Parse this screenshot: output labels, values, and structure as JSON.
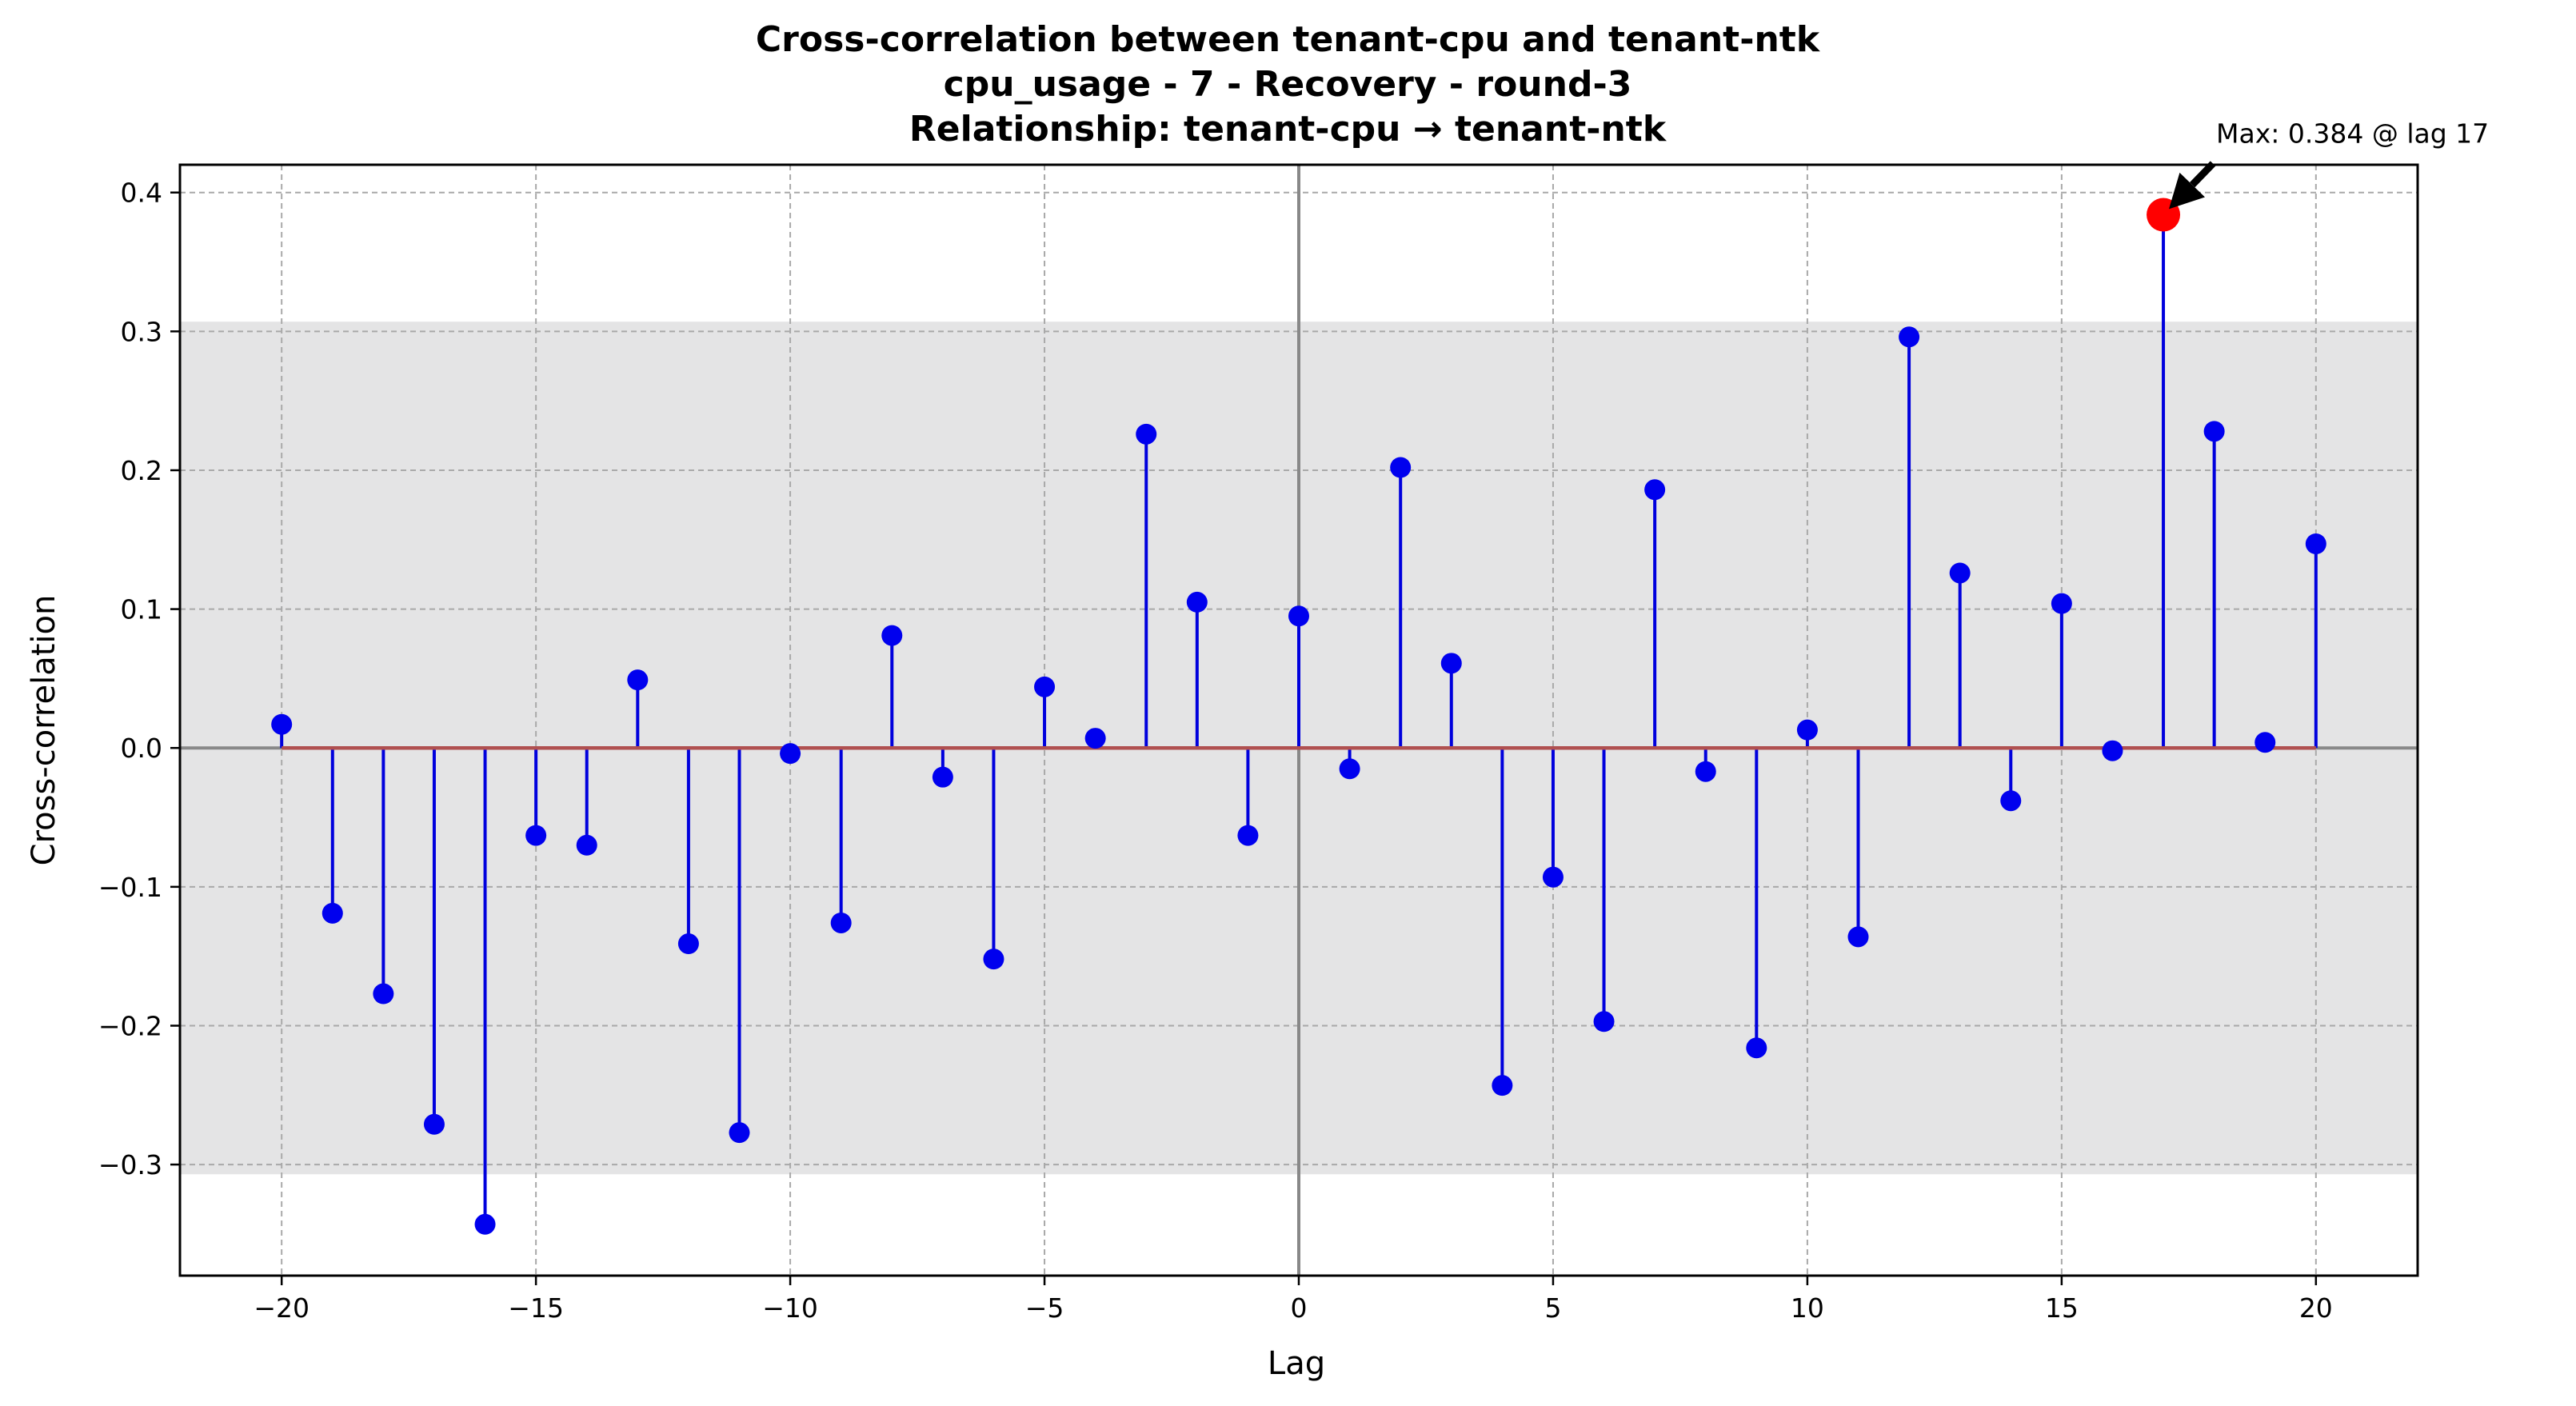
{
  "chart_data": {
    "type": "stem",
    "title_lines": [
      "Cross-correlation between tenant-cpu and tenant-ntk",
      "cpu_usage - 7 - Recovery - round-3",
      "Relationship: tenant-cpu → tenant-ntk"
    ],
    "xlabel": "Lag",
    "ylabel": "Cross-correlation",
    "xlim": [
      -22,
      22
    ],
    "ylim": [
      -0.38,
      0.42
    ],
    "xticks": [
      -20,
      -15,
      -10,
      -5,
      0,
      5,
      10,
      15,
      20
    ],
    "xtick_labels": [
      "−20",
      "−15",
      "−10",
      "−5",
      "0",
      "5",
      "10",
      "15",
      "20"
    ],
    "yticks": [
      -0.3,
      -0.2,
      -0.1,
      0.0,
      0.1,
      0.2,
      0.3,
      0.4
    ],
    "ytick_labels": [
      "−0.3",
      "−0.2",
      "−0.1",
      "0.0",
      "0.1",
      "0.2",
      "0.3",
      "0.4"
    ],
    "grid": true,
    "confidence_band": [
      -0.307,
      0.307
    ],
    "lags": [
      -20,
      -19,
      -18,
      -17,
      -16,
      -15,
      -14,
      -13,
      -12,
      -11,
      -10,
      -9,
      -8,
      -7,
      -6,
      -5,
      -4,
      -3,
      -2,
      -1,
      0,
      1,
      2,
      3,
      4,
      5,
      6,
      7,
      8,
      9,
      10,
      11,
      12,
      13,
      14,
      15,
      16,
      17,
      18,
      19,
      20
    ],
    "values": [
      0.017,
      -0.119,
      -0.177,
      -0.271,
      -0.343,
      -0.063,
      -0.07,
      0.049,
      -0.141,
      -0.277,
      -0.004,
      -0.126,
      0.081,
      -0.021,
      -0.152,
      0.044,
      0.007,
      0.226,
      0.105,
      -0.063,
      0.095,
      -0.015,
      0.202,
      0.061,
      -0.243,
      -0.093,
      -0.197,
      0.186,
      -0.017,
      -0.216,
      0.013,
      -0.136,
      0.296,
      0.126,
      -0.038,
      0.104,
      -0.002,
      0.384,
      0.228,
      0.004,
      0.147
    ],
    "max_point": {
      "lag": 17,
      "value": 0.384
    },
    "annotation": "Max: 0.384 @ lag 17",
    "colors": {
      "stem": "#0000dd",
      "marker": "#0000ee",
      "baseline": "#b05050",
      "max_marker": "#ff0000",
      "band": "#e4e4e5",
      "grid": "#a9a9a9",
      "zero_lines": "#888888"
    }
  }
}
